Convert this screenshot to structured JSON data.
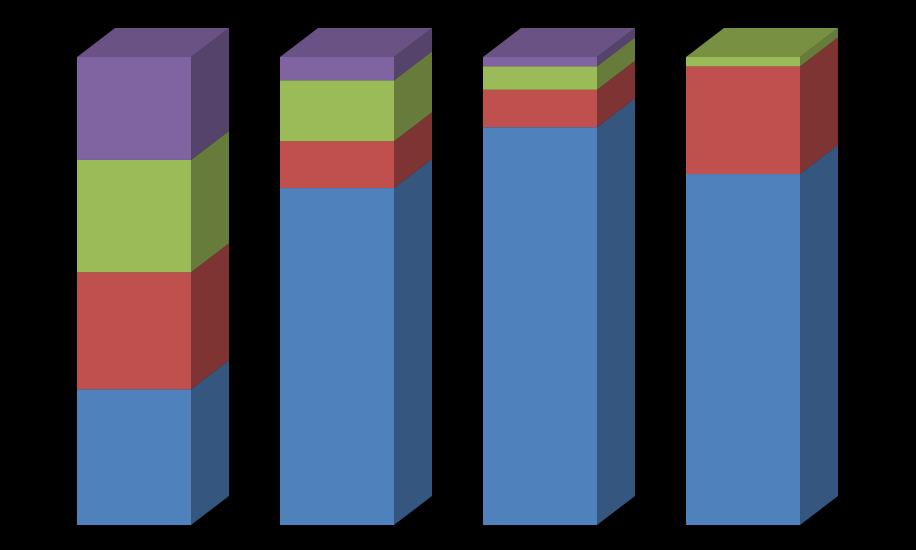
{
  "chart_data": {
    "type": "bar",
    "stacked": true,
    "three_d": true,
    "normalized_percent": true,
    "categories": [
      "",
      "",
      "",
      ""
    ],
    "series": [
      {
        "color": "#4F81BD",
        "side_color": "#35567F",
        "top_color": "#6F99CC",
        "values": [
          29,
          72,
          85,
          75
        ]
      },
      {
        "color": "#C0504D",
        "side_color": "#7E3432",
        "top_color": "#C97B79",
        "values": [
          25,
          10,
          8,
          23
        ]
      },
      {
        "color": "#9BBB59",
        "side_color": "#677C3B",
        "top_color": "#779042",
        "values": [
          24,
          13,
          5,
          2
        ]
      },
      {
        "color": "#8064A2",
        "side_color": "#56436C",
        "top_color": "#6A5384",
        "values": [
          22,
          5,
          2,
          0
        ]
      }
    ],
    "ylim": [
      0,
      100
    ],
    "grid": false,
    "legend": "none",
    "background": "#000000"
  }
}
